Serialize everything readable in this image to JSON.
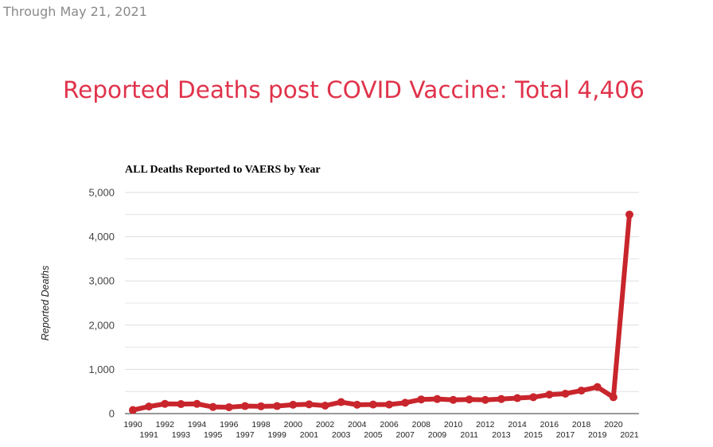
{
  "header": {
    "date_note": "Through May 21, 2021",
    "headline": "Reported Deaths post COVID Vaccine: Total 4,406"
  },
  "colors": {
    "headline": "#e0334b",
    "line": "#c9252c",
    "grid": "#dddddd"
  },
  "chart_data": {
    "type": "line",
    "title": "ALL Deaths Reported to VAERS by Year",
    "xlabel": "",
    "ylabel": "Reported Deaths",
    "ylim": [
      0,
      5000
    ],
    "yticks": [
      0,
      1000,
      2000,
      3000,
      4000,
      5000
    ],
    "ytick_labels": [
      "0",
      "1,000",
      "2,000",
      "3,000",
      "4,000",
      "5,000"
    ],
    "grid": true,
    "x": [
      "1990",
      "1991",
      "1992",
      "1993",
      "1994",
      "1995",
      "1996",
      "1997",
      "1998",
      "1999",
      "2000",
      "2001",
      "2002",
      "2003",
      "2004",
      "2005",
      "2006",
      "2007",
      "2008",
      "2009",
      "2010",
      "2011",
      "2012",
      "2013",
      "2014",
      "2015",
      "2016",
      "2017",
      "2018",
      "2019",
      "2020",
      "2021"
    ],
    "series": [
      {
        "values": [
          80,
          160,
          220,
          215,
          220,
          150,
          145,
          170,
          165,
          170,
          200,
          210,
          180,
          260,
          200,
          205,
          205,
          245,
          320,
          330,
          310,
          320,
          310,
          330,
          350,
          370,
          430,
          450,
          520,
          600,
          370,
          4500
        ]
      }
    ]
  }
}
